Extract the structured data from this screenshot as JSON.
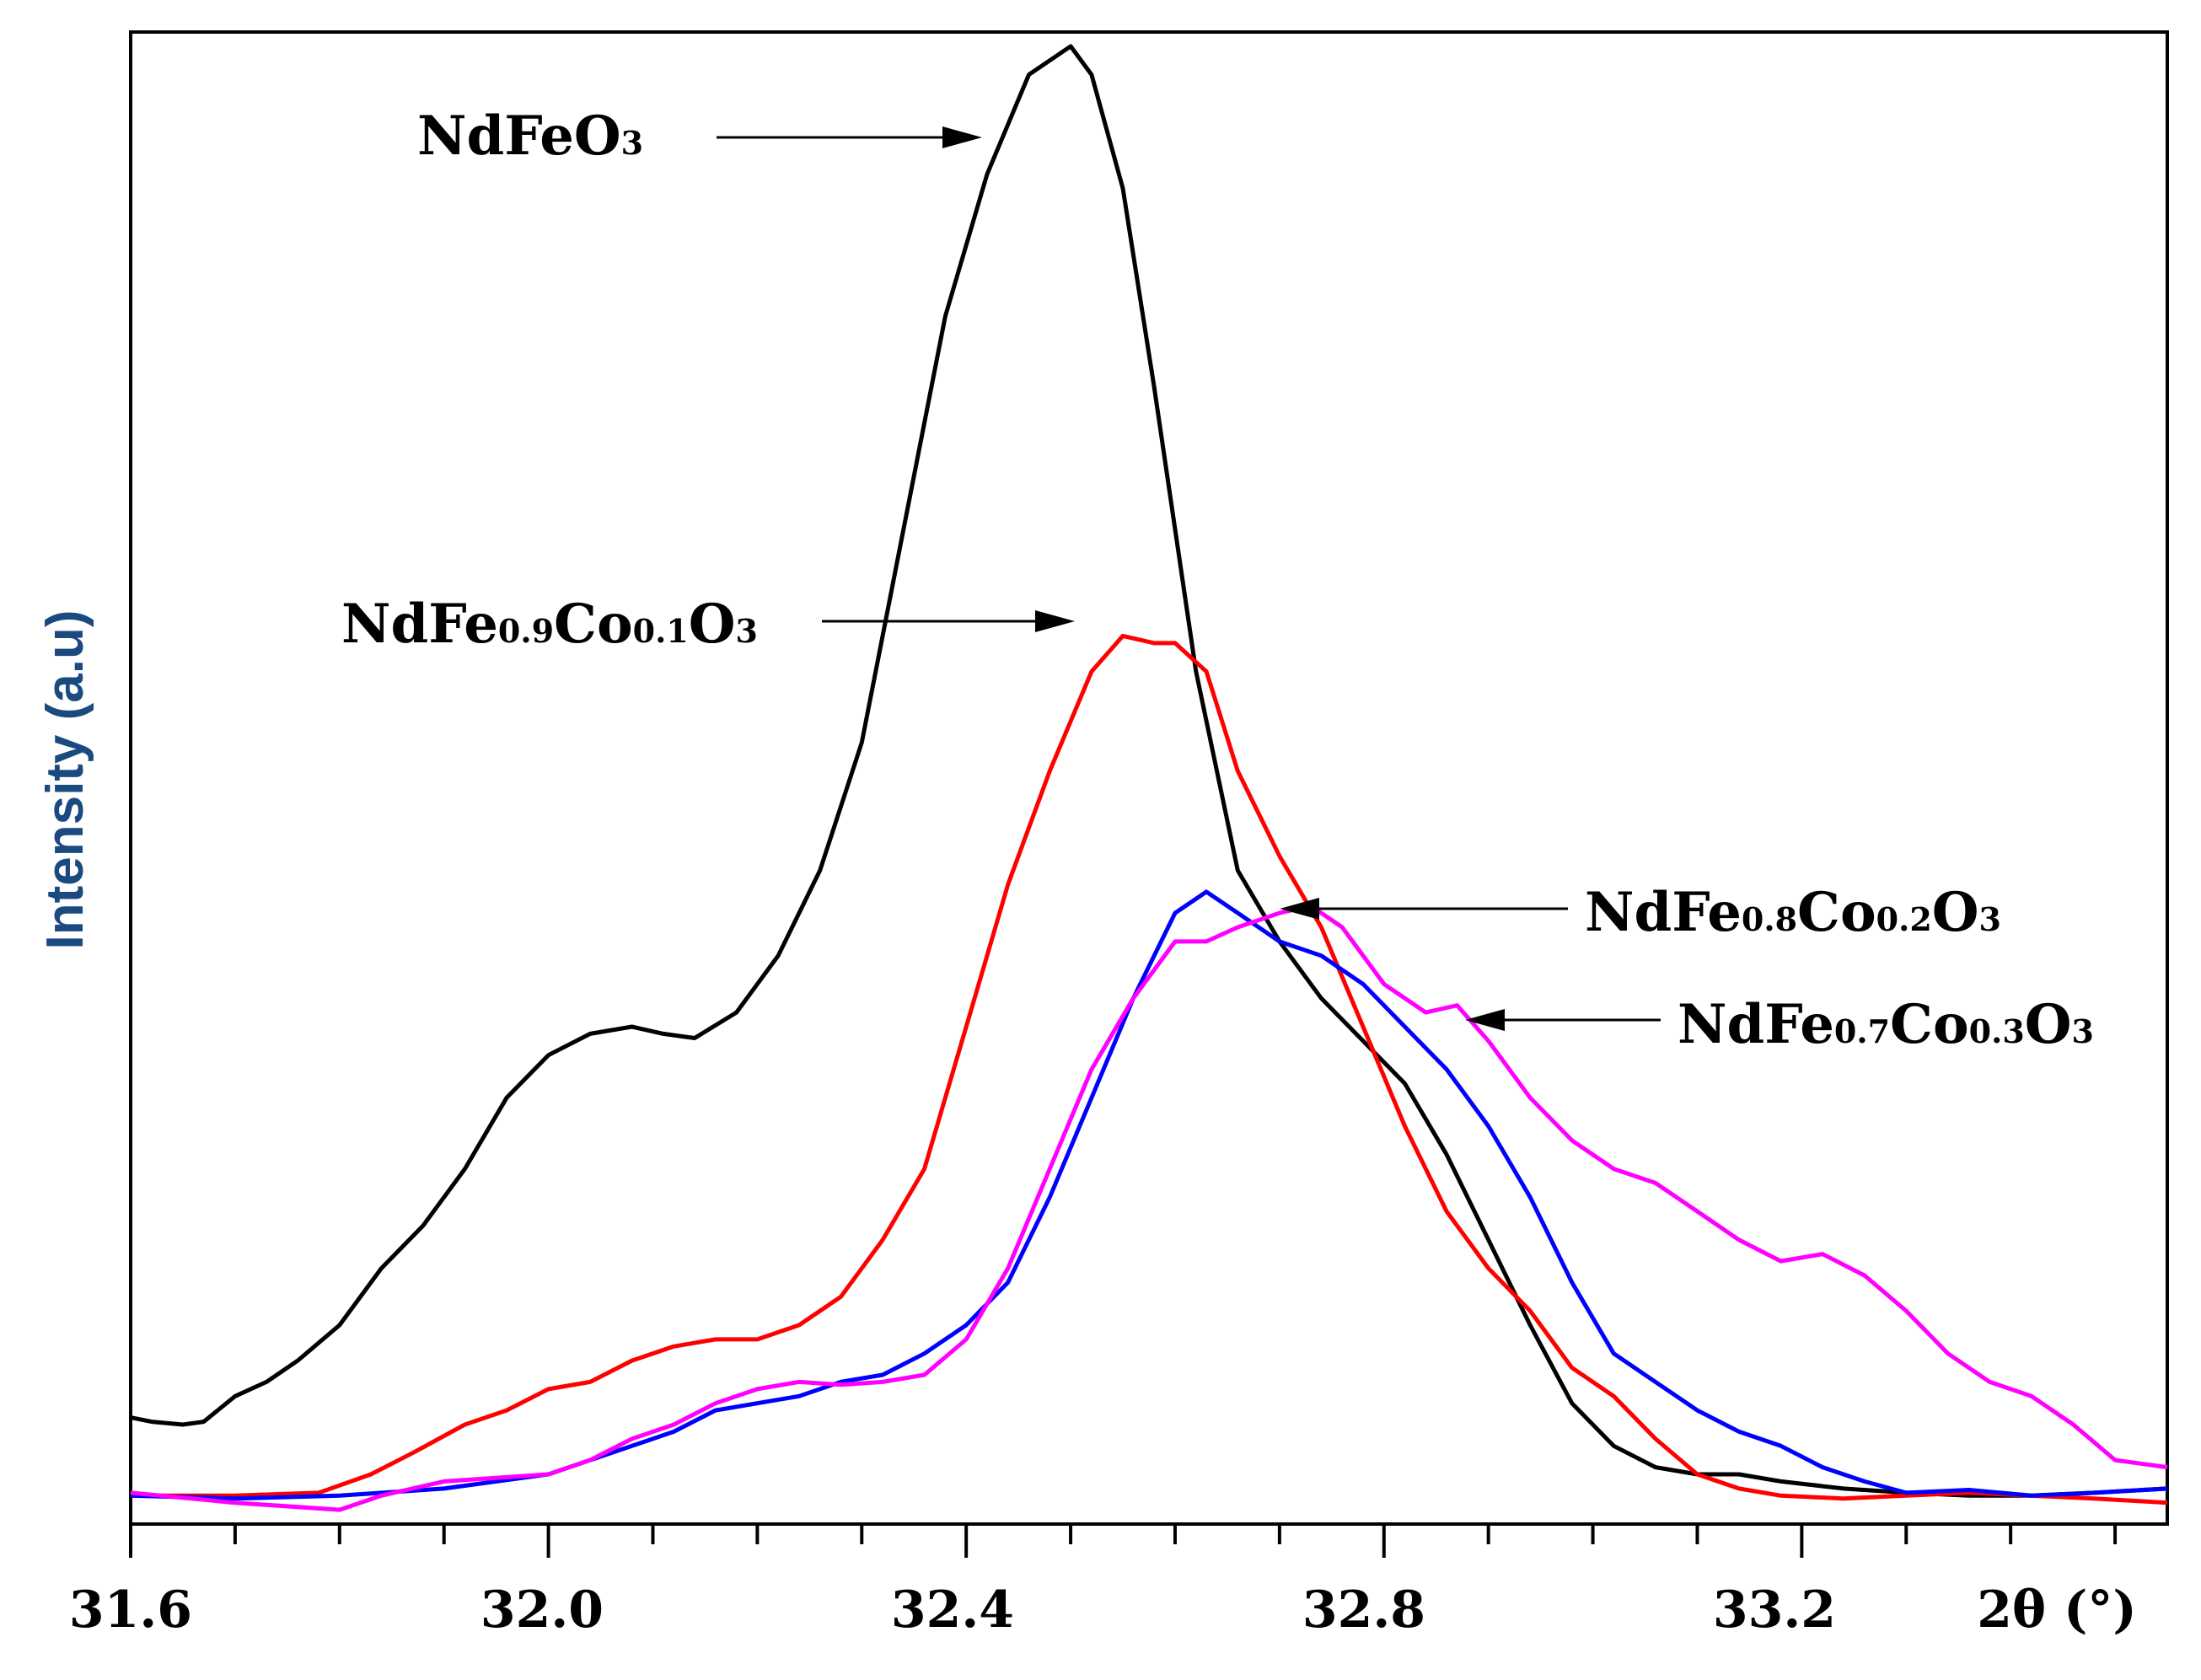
{
  "chart_data": {
    "type": "line",
    "title": "",
    "xlabel": "2θ (°)",
    "ylabel": "Intensity (a.u)",
    "xlim": [
      31.6,
      33.55
    ],
    "ylim": [
      0,
      1.05
    ],
    "x_tick_labels": [
      "31.6",
      "32.0",
      "32.4",
      "32.8",
      "33.2"
    ],
    "x_tick_values": [
      31.6,
      32.0,
      32.4,
      32.8,
      33.2
    ],
    "minor_tick_step": 0.1,
    "grid": false,
    "legend": "none",
    "series": [
      {
        "name": "NdFeO3",
        "label_main": "NdFeO",
        "label_sub": "3",
        "color": "#000000",
        "points": [
          [
            31.6,
            0.075
          ],
          [
            31.62,
            0.072
          ],
          [
            31.65,
            0.07
          ],
          [
            31.67,
            0.072
          ],
          [
            31.7,
            0.09
          ],
          [
            31.73,
            0.1
          ],
          [
            31.76,
            0.115
          ],
          [
            31.8,
            0.14
          ],
          [
            31.84,
            0.18
          ],
          [
            31.88,
            0.21
          ],
          [
            31.92,
            0.25
          ],
          [
            31.96,
            0.3
          ],
          [
            32.0,
            0.33
          ],
          [
            32.04,
            0.345
          ],
          [
            32.08,
            0.35
          ],
          [
            32.11,
            0.345
          ],
          [
            32.14,
            0.342
          ],
          [
            32.18,
            0.36
          ],
          [
            32.22,
            0.4
          ],
          [
            32.26,
            0.46
          ],
          [
            32.3,
            0.55
          ],
          [
            32.34,
            0.7
          ],
          [
            32.38,
            0.85
          ],
          [
            32.42,
            0.95
          ],
          [
            32.46,
            1.02
          ],
          [
            32.5,
            1.04
          ],
          [
            32.52,
            1.02
          ],
          [
            32.55,
            0.94
          ],
          [
            32.58,
            0.8
          ],
          [
            32.62,
            0.6
          ],
          [
            32.66,
            0.46
          ],
          [
            32.7,
            0.41
          ],
          [
            32.74,
            0.37
          ],
          [
            32.78,
            0.34
          ],
          [
            32.82,
            0.31
          ],
          [
            32.86,
            0.26
          ],
          [
            32.9,
            0.2
          ],
          [
            32.94,
            0.14
          ],
          [
            32.98,
            0.085
          ],
          [
            33.02,
            0.055
          ],
          [
            33.06,
            0.04
          ],
          [
            33.1,
            0.035
          ],
          [
            33.14,
            0.035
          ],
          [
            33.18,
            0.03
          ],
          [
            33.24,
            0.025
          ],
          [
            33.3,
            0.022
          ],
          [
            33.36,
            0.02
          ],
          [
            33.42,
            0.02
          ],
          [
            33.48,
            0.022
          ],
          [
            33.55,
            0.025
          ]
        ]
      },
      {
        "name": "NdFe0.9Co0.1O3",
        "label_main": "NdFe",
        "label_parts": [
          "NdFe",
          "0.9",
          "Co",
          "0.1",
          "O",
          "3"
        ],
        "color": "#ff0000",
        "points": [
          [
            31.6,
            0.02
          ],
          [
            31.7,
            0.02
          ],
          [
            31.78,
            0.022
          ],
          [
            31.83,
            0.035
          ],
          [
            31.87,
            0.05
          ],
          [
            31.92,
            0.07
          ],
          [
            31.96,
            0.08
          ],
          [
            32.0,
            0.095
          ],
          [
            32.04,
            0.1
          ],
          [
            32.08,
            0.115
          ],
          [
            32.12,
            0.125
          ],
          [
            32.16,
            0.13
          ],
          [
            32.2,
            0.13
          ],
          [
            32.24,
            0.14
          ],
          [
            32.28,
            0.16
          ],
          [
            32.32,
            0.2
          ],
          [
            32.36,
            0.25
          ],
          [
            32.4,
            0.35
          ],
          [
            32.44,
            0.45
          ],
          [
            32.48,
            0.53
          ],
          [
            32.52,
            0.6
          ],
          [
            32.55,
            0.625
          ],
          [
            32.58,
            0.62
          ],
          [
            32.6,
            0.62
          ],
          [
            32.63,
            0.6
          ],
          [
            32.66,
            0.53
          ],
          [
            32.7,
            0.47
          ],
          [
            32.74,
            0.42
          ],
          [
            32.78,
            0.35
          ],
          [
            32.82,
            0.28
          ],
          [
            32.86,
            0.22
          ],
          [
            32.9,
            0.18
          ],
          [
            32.94,
            0.15
          ],
          [
            32.98,
            0.11
          ],
          [
            33.02,
            0.09
          ],
          [
            33.06,
            0.06
          ],
          [
            33.1,
            0.035
          ],
          [
            33.14,
            0.025
          ],
          [
            33.18,
            0.02
          ],
          [
            33.24,
            0.018
          ],
          [
            33.3,
            0.02
          ],
          [
            33.36,
            0.022
          ],
          [
            33.42,
            0.02
          ],
          [
            33.48,
            0.018
          ],
          [
            33.55,
            0.015
          ]
        ]
      },
      {
        "name": "NdFe0.8Co0.2O3",
        "label_parts": [
          "NdFe",
          "0.8",
          "Co",
          "0.2",
          "O",
          "3"
        ],
        "color": "#0000ff",
        "points": [
          [
            31.6,
            0.02
          ],
          [
            31.7,
            0.018
          ],
          [
            31.8,
            0.02
          ],
          [
            31.9,
            0.025
          ],
          [
            32.0,
            0.035
          ],
          [
            32.04,
            0.045
          ],
          [
            32.08,
            0.055
          ],
          [
            32.12,
            0.065
          ],
          [
            32.16,
            0.08
          ],
          [
            32.2,
            0.085
          ],
          [
            32.24,
            0.09
          ],
          [
            32.28,
            0.1
          ],
          [
            32.32,
            0.105
          ],
          [
            32.36,
            0.12
          ],
          [
            32.4,
            0.14
          ],
          [
            32.44,
            0.17
          ],
          [
            32.48,
            0.23
          ],
          [
            32.52,
            0.3
          ],
          [
            32.56,
            0.37
          ],
          [
            32.6,
            0.43
          ],
          [
            32.63,
            0.445
          ],
          [
            32.66,
            0.43
          ],
          [
            32.7,
            0.41
          ],
          [
            32.74,
            0.4
          ],
          [
            32.78,
            0.38
          ],
          [
            32.82,
            0.35
          ],
          [
            32.86,
            0.32
          ],
          [
            32.9,
            0.28
          ],
          [
            32.94,
            0.23
          ],
          [
            32.98,
            0.17
          ],
          [
            33.02,
            0.12
          ],
          [
            33.06,
            0.1
          ],
          [
            33.1,
            0.08
          ],
          [
            33.14,
            0.065
          ],
          [
            33.18,
            0.055
          ],
          [
            33.22,
            0.04
          ],
          [
            33.26,
            0.03
          ],
          [
            33.3,
            0.022
          ],
          [
            33.36,
            0.024
          ],
          [
            33.42,
            0.02
          ],
          [
            33.48,
            0.022
          ],
          [
            33.55,
            0.025
          ]
        ]
      },
      {
        "name": "NdFe0.7Co0.3O3",
        "label_parts": [
          "NdFe",
          "0.7",
          "Co",
          "0.3",
          "O",
          "3"
        ],
        "color": "#ff00ff",
        "points": [
          [
            31.6,
            0.022
          ],
          [
            31.7,
            0.015
          ],
          [
            31.8,
            0.01
          ],
          [
            31.84,
            0.02
          ],
          [
            31.9,
            0.03
          ],
          [
            32.0,
            0.035
          ],
          [
            32.04,
            0.045
          ],
          [
            32.08,
            0.06
          ],
          [
            32.12,
            0.07
          ],
          [
            32.16,
            0.085
          ],
          [
            32.2,
            0.095
          ],
          [
            32.24,
            0.1
          ],
          [
            32.28,
            0.098
          ],
          [
            32.32,
            0.1
          ],
          [
            32.36,
            0.105
          ],
          [
            32.4,
            0.13
          ],
          [
            32.44,
            0.18
          ],
          [
            32.48,
            0.25
          ],
          [
            32.52,
            0.32
          ],
          [
            32.56,
            0.37
          ],
          [
            32.6,
            0.41
          ],
          [
            32.63,
            0.41
          ],
          [
            32.66,
            0.42
          ],
          [
            32.7,
            0.43
          ],
          [
            32.73,
            0.435
          ],
          [
            32.76,
            0.42
          ],
          [
            32.8,
            0.38
          ],
          [
            32.84,
            0.36
          ],
          [
            32.87,
            0.365
          ],
          [
            32.9,
            0.34
          ],
          [
            32.94,
            0.3
          ],
          [
            32.98,
            0.27
          ],
          [
            33.02,
            0.25
          ],
          [
            33.06,
            0.24
          ],
          [
            33.1,
            0.22
          ],
          [
            33.14,
            0.2
          ],
          [
            33.18,
            0.185
          ],
          [
            33.22,
            0.19
          ],
          [
            33.26,
            0.175
          ],
          [
            33.3,
            0.15
          ],
          [
            33.34,
            0.12
          ],
          [
            33.38,
            0.1
          ],
          [
            33.42,
            0.09
          ],
          [
            33.46,
            0.07
          ],
          [
            33.5,
            0.045
          ],
          [
            33.55,
            0.04
          ]
        ]
      }
    ],
    "annotations": [
      {
        "series": "NdFeO3",
        "parts": [
          "NdFe",
          "",
          "O",
          "3"
        ]
      },
      {
        "series": "NdFe0.9Co0.1O3",
        "parts": [
          "NdFe",
          "0.9",
          "Co",
          "0.1",
          "O",
          "3"
        ]
      },
      {
        "series": "NdFe0.8Co0.2O3",
        "parts": [
          "NdFe",
          "0.8",
          "Co",
          "0.2",
          "O",
          "3"
        ]
      },
      {
        "series": "NdFe0.7Co0.3O3",
        "parts": [
          "NdFe",
          "0.7",
          "Co",
          "0.3",
          "O",
          "3"
        ]
      }
    ]
  }
}
